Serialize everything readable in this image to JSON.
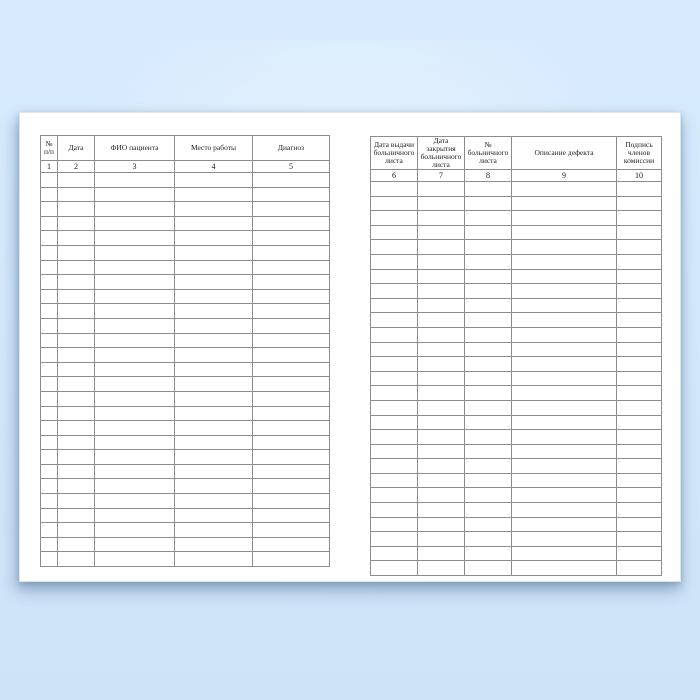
{
  "scene": {
    "background_color_top": "#d8ebfd",
    "background_color_bottom": "#cde3f8",
    "paper_color": "#ffffff",
    "shadow_color": "#5c7a9e",
    "grid_line_color": "#8c8c8c",
    "outer_line_color": "#5f5f5f",
    "text_color": "#1c1c1c"
  },
  "journal": {
    "left_table": {
      "columns": [
        {
          "label": "№ п/п",
          "num": "1"
        },
        {
          "label": "Дата",
          "num": "2"
        },
        {
          "label": "ФИО пациента",
          "num": "3"
        },
        {
          "label": "Место работы",
          "num": "4"
        },
        {
          "label": "Диагноз",
          "num": "5"
        }
      ],
      "empty_row_count": 27
    },
    "right_table": {
      "columns": [
        {
          "label": "Дата выдачи больничного листа",
          "num": "6"
        },
        {
          "label": "Дата закрытия больничного листа",
          "num": "7"
        },
        {
          "label": "№ больничного листа",
          "num": "8"
        },
        {
          "label": "Описание дефекта",
          "num": "9"
        },
        {
          "label": "Подпись членов комиссии",
          "num": "10"
        }
      ],
      "empty_row_count": 27
    }
  }
}
